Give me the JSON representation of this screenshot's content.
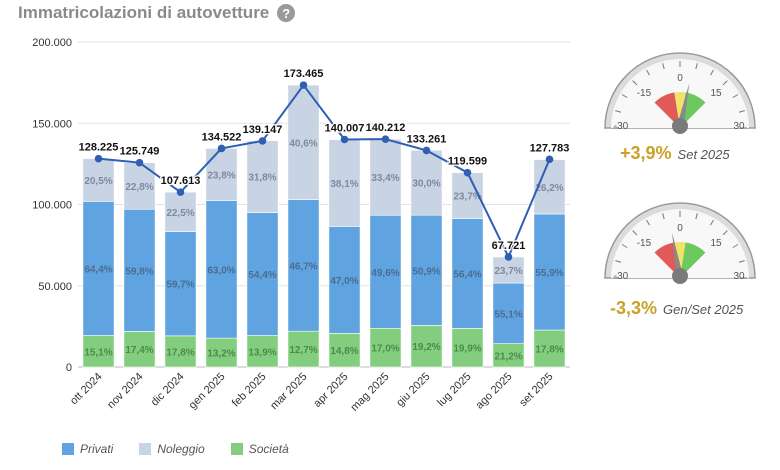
{
  "header": {
    "title": "Immatricolazioni di autovetture",
    "help_icon": "?"
  },
  "colors": {
    "privati": "#5fa3e0",
    "noleggio": "#c8d3e3",
    "societa": "#82ce7e",
    "line": "#2f5fb3",
    "gauge_red": "#e05a58",
    "gauge_yellow": "#f0e36a",
    "gauge_green": "#6cc85f",
    "gauge_value": "#c9a227"
  },
  "chart_data": {
    "type": "bar",
    "stacked": true,
    "categories": [
      "ott 2024",
      "nov 2024",
      "dic 2024",
      "gen 2025",
      "feb 2025",
      "mar 2025",
      "apr 2025",
      "mag 2025",
      "giu 2025",
      "lug 2025",
      "ago 2025",
      "set 2025"
    ],
    "totals": [
      128225,
      125749,
      107613,
      134522,
      139147,
      173465,
      140007,
      140212,
      133261,
      119599,
      67721,
      127783
    ],
    "total_labels": [
      "128.225",
      "125.749",
      "107.613",
      "134.522",
      "139.147",
      "173.465",
      "140.007",
      "140.212",
      "133.261",
      "119.599",
      "67.721",
      "127.783"
    ],
    "series": [
      {
        "name": "Privati",
        "share_labels": [
          "64,4%",
          "59,8%",
          "59,7%",
          "63,0%",
          "54,4%",
          "46,7%",
          "47,0%",
          "49,6%",
          "50,9%",
          "56,4%",
          "55,1%",
          "55,9%"
        ]
      },
      {
        "name": "Noleggio",
        "share_labels": [
          "20,5%",
          "22,8%",
          "22,5%",
          "23,8%",
          "31,8%",
          "40,6%",
          "38,1%",
          "33,4%",
          "30,0%",
          "23,7%",
          "23,7%",
          "26,2%"
        ]
      },
      {
        "name": "Società",
        "share_labels": [
          "15,1%",
          "17,4%",
          "17,8%",
          "13,2%",
          "13,9%",
          "12,7%",
          "14,8%",
          "17,0%",
          "19,2%",
          "19,9%",
          "21,2%",
          "17,8%"
        ]
      }
    ],
    "y_ticks": [
      "0",
      "50.000",
      "100.000",
      "150.000",
      "200.000"
    ],
    "y_tick_values": [
      0,
      50000,
      100000,
      150000,
      200000
    ],
    "ylim": [
      0,
      200000
    ],
    "grid": true,
    "legend_position": "bottom-left"
  },
  "gauges": [
    {
      "value": 3.9,
      "value_label": "+3,9%",
      "period_label": "Set 2025",
      "ticks": [
        "-30",
        "-15",
        "0",
        "15",
        "30"
      ],
      "range": [
        -30,
        30
      ]
    },
    {
      "value": -3.3,
      "value_label": "-3,3%",
      "period_label": "Gen/Set 2025",
      "ticks": [
        "-30",
        "-15",
        "0",
        "15",
        "30"
      ],
      "range": [
        -30,
        30
      ]
    }
  ]
}
